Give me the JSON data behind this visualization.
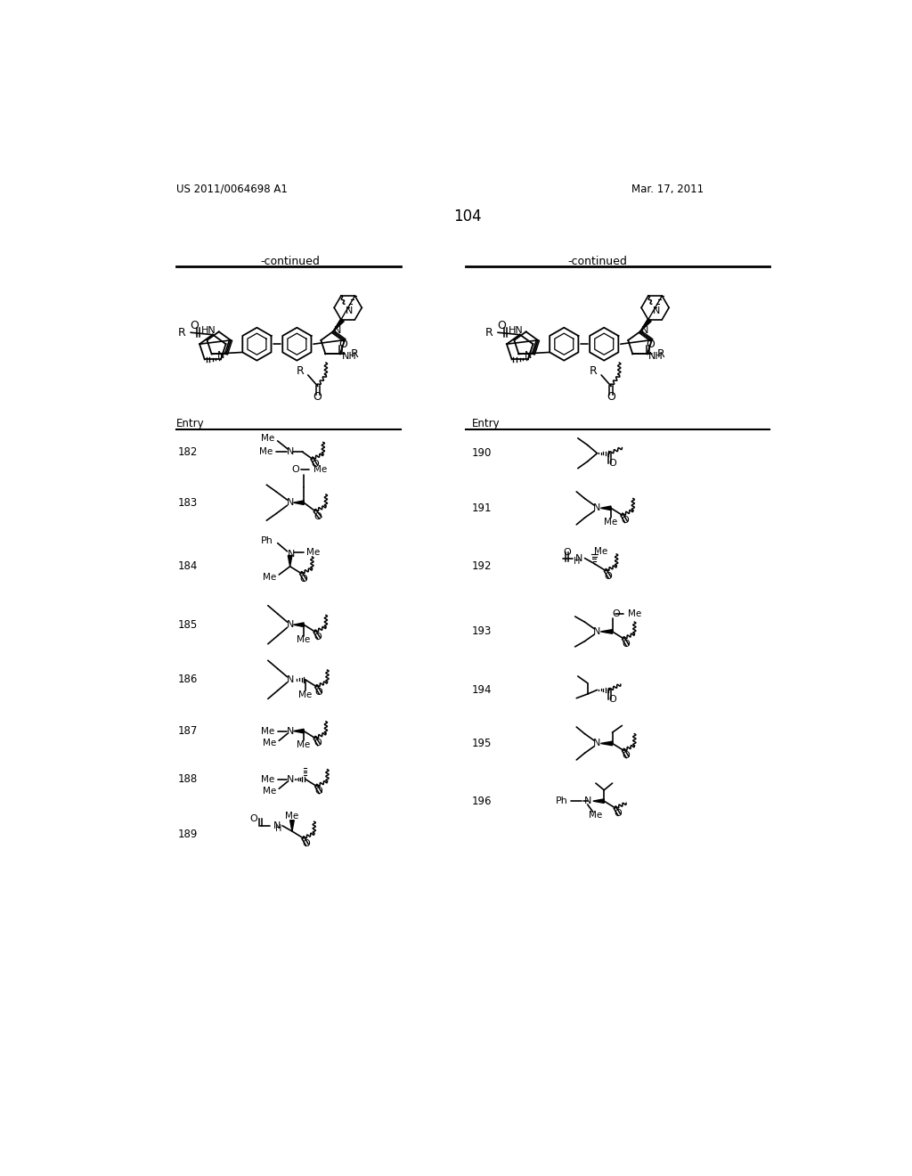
{
  "page_number": "104",
  "patent_number": "US 2011/0064698 A1",
  "patent_date": "Mar. 17, 2011",
  "background_color": "#ffffff",
  "text_color": "#000000",
  "left_header": "-continued",
  "right_header": "-continued"
}
